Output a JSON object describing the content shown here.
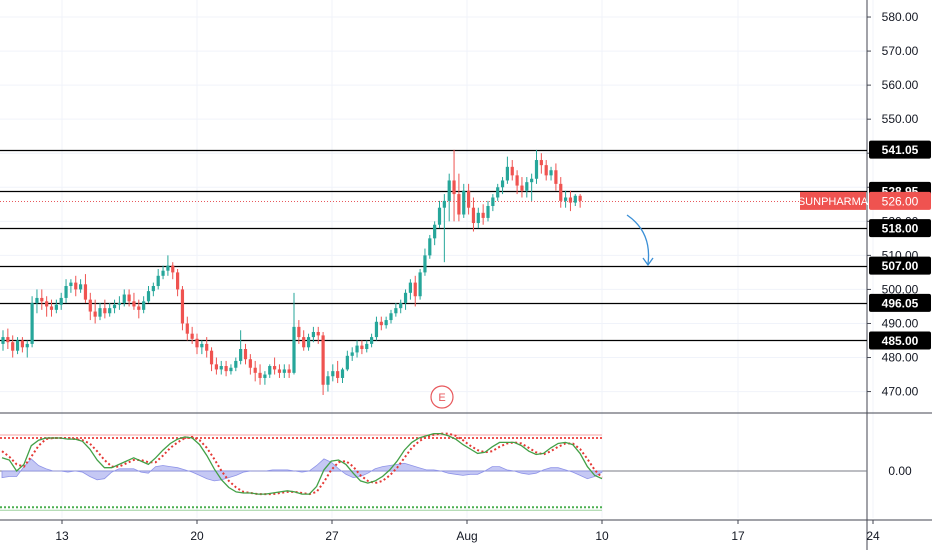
{
  "chart_data": {
    "type": "candlestick",
    "symbol": "SUNPHARMA",
    "last_price": "526.00",
    "y_ticks": [
      "580.00",
      "570.00",
      "560.00",
      "550.00",
      "540.00",
      "530.00",
      "520.00",
      "510.00",
      "500.00",
      "490.00",
      "480.00",
      "470.00"
    ],
    "ylim": [
      464,
      585
    ],
    "x_ticks": [
      "13",
      "20",
      "27",
      "Aug",
      "10",
      "17",
      "24"
    ],
    "levels": [
      {
        "label": "541.05",
        "value": 541.05,
        "style": "solid",
        "color": "#000000"
      },
      {
        "label": "528.95",
        "value": 528.95,
        "style": "solid",
        "color": "#000000"
      },
      {
        "label": "518.00",
        "value": 518.0,
        "style": "solid",
        "color": "#000000"
      },
      {
        "label": "507.00",
        "value": 507.0,
        "style": "solid",
        "color": "#000000"
      },
      {
        "label": "496.05",
        "value": 496.05,
        "style": "solid",
        "color": "#000000"
      },
      {
        "label": "485.00",
        "value": 485.0,
        "style": "solid",
        "color": "#000000"
      }
    ],
    "current_price_line": {
      "value": 526.0,
      "color": "#e8585c",
      "style": "dotted"
    },
    "earnings_marker": {
      "label": "E"
    },
    "candles": [
      {
        "o": 484.0,
        "h": 488.0,
        "c": 486.0,
        "l": 482.0
      },
      {
        "o": 486.0,
        "h": 488.5,
        "c": 484.5,
        "l": 482.5
      },
      {
        "o": 484.5,
        "h": 486.5,
        "c": 482.0,
        "l": 480.0
      },
      {
        "o": 482.0,
        "h": 486.0,
        "c": 485.0,
        "l": 481.0
      },
      {
        "o": 485.0,
        "h": 486.0,
        "c": 483.0,
        "l": 481.5
      },
      {
        "o": 483.0,
        "h": 485.0,
        "c": 484.0,
        "l": 480.0
      },
      {
        "o": 484.0,
        "h": 498.0,
        "c": 496.0,
        "l": 483.0
      },
      {
        "o": 496.0,
        "h": 500.0,
        "c": 497.5,
        "l": 493.0
      },
      {
        "o": 497.5,
        "h": 500.0,
        "c": 496.5,
        "l": 494.0
      },
      {
        "o": 496.5,
        "h": 498.0,
        "c": 495.0,
        "l": 492.0
      },
      {
        "o": 495.0,
        "h": 497.0,
        "c": 494.0,
        "l": 492.0
      },
      {
        "o": 494.0,
        "h": 497.0,
        "c": 495.5,
        "l": 493.0
      },
      {
        "o": 495.5,
        "h": 499.0,
        "c": 497.5,
        "l": 494.0
      },
      {
        "o": 497.5,
        "h": 503.0,
        "c": 501.0,
        "l": 496.0
      },
      {
        "o": 501.0,
        "h": 503.0,
        "c": 502.0,
        "l": 499.0
      },
      {
        "o": 502.0,
        "h": 504.0,
        "c": 500.0,
        "l": 498.0
      },
      {
        "o": 500.0,
        "h": 503.0,
        "c": 501.5,
        "l": 499.0
      },
      {
        "o": 501.5,
        "h": 504.5,
        "c": 497.0,
        "l": 496.0
      },
      {
        "o": 497.0,
        "h": 499.0,
        "c": 493.5,
        "l": 491.0
      },
      {
        "o": 493.5,
        "h": 497.0,
        "c": 492.0,
        "l": 490.0
      },
      {
        "o": 492.0,
        "h": 496.0,
        "c": 494.5,
        "l": 491.0
      },
      {
        "o": 494.5,
        "h": 497.0,
        "c": 493.0,
        "l": 491.5
      },
      {
        "o": 493.0,
        "h": 496.0,
        "c": 494.5,
        "l": 492.0
      },
      {
        "o": 494.5,
        "h": 497.0,
        "c": 495.5,
        "l": 493.0
      },
      {
        "o": 495.5,
        "h": 498.0,
        "c": 496.0,
        "l": 494.0
      },
      {
        "o": 496.0,
        "h": 500.0,
        "c": 498.5,
        "l": 495.0
      },
      {
        "o": 498.5,
        "h": 500.0,
        "c": 496.5,
        "l": 495.0
      },
      {
        "o": 496.5,
        "h": 499.0,
        "c": 495.0,
        "l": 494.0
      },
      {
        "o": 495.0,
        "h": 497.0,
        "c": 494.0,
        "l": 491.5
      },
      {
        "o": 494.0,
        "h": 498.0,
        "c": 496.5,
        "l": 493.0
      },
      {
        "o": 496.5,
        "h": 501.0,
        "c": 499.5,
        "l": 496.0
      },
      {
        "o": 499.5,
        "h": 502.0,
        "c": 501.0,
        "l": 498.0
      },
      {
        "o": 501.0,
        "h": 506.0,
        "c": 504.0,
        "l": 500.0
      },
      {
        "o": 504.0,
        "h": 507.0,
        "c": 505.5,
        "l": 503.0
      },
      {
        "o": 505.5,
        "h": 510.0,
        "c": 507.0,
        "l": 504.0
      },
      {
        "o": 507.0,
        "h": 508.0,
        "c": 505.0,
        "l": 503.0
      },
      {
        "o": 505.0,
        "h": 506.0,
        "c": 500.0,
        "l": 498.0
      },
      {
        "o": 500.0,
        "h": 501.0,
        "c": 490.0,
        "l": 488.0
      },
      {
        "o": 490.0,
        "h": 492.0,
        "c": 487.0,
        "l": 485.0
      },
      {
        "o": 487.0,
        "h": 489.0,
        "c": 485.5,
        "l": 484.0
      },
      {
        "o": 485.5,
        "h": 487.0,
        "c": 483.0,
        "l": 481.0
      },
      {
        "o": 483.0,
        "h": 485.0,
        "c": 484.0,
        "l": 481.0
      },
      {
        "o": 484.0,
        "h": 486.0,
        "c": 482.0,
        "l": 480.0
      },
      {
        "o": 482.0,
        "h": 483.0,
        "c": 478.0,
        "l": 476.0
      },
      {
        "o": 478.0,
        "h": 480.0,
        "c": 476.5,
        "l": 475.0
      },
      {
        "o": 476.5,
        "h": 479.0,
        "c": 477.5,
        "l": 475.0
      },
      {
        "o": 477.5,
        "h": 479.0,
        "c": 476.0,
        "l": 474.5
      },
      {
        "o": 476.0,
        "h": 478.0,
        "c": 477.0,
        "l": 475.0
      },
      {
        "o": 477.0,
        "h": 480.0,
        "c": 479.0,
        "l": 476.0
      },
      {
        "o": 479.0,
        "h": 488.0,
        "c": 482.5,
        "l": 478.0
      },
      {
        "o": 482.5,
        "h": 484.0,
        "c": 479.5,
        "l": 478.0
      },
      {
        "o": 479.5,
        "h": 481.0,
        "c": 477.0,
        "l": 475.0
      },
      {
        "o": 477.0,
        "h": 479.0,
        "c": 475.5,
        "l": 473.0
      },
      {
        "o": 475.5,
        "h": 478.0,
        "c": 474.0,
        "l": 472.0
      },
      {
        "o": 474.0,
        "h": 476.0,
        "c": 475.0,
        "l": 472.0
      },
      {
        "o": 475.0,
        "h": 478.0,
        "c": 477.5,
        "l": 474.0
      },
      {
        "o": 477.5,
        "h": 480.0,
        "c": 476.5,
        "l": 475.0
      },
      {
        "o": 476.5,
        "h": 478.0,
        "c": 475.5,
        "l": 474.0
      },
      {
        "o": 475.5,
        "h": 478.0,
        "c": 476.5,
        "l": 474.0
      },
      {
        "o": 476.5,
        "h": 478.0,
        "c": 475.5,
        "l": 474.0
      },
      {
        "o": 475.5,
        "h": 499.0,
        "c": 489.0,
        "l": 475.0
      },
      {
        "o": 489.0,
        "h": 491.0,
        "c": 486.0,
        "l": 484.0
      },
      {
        "o": 486.0,
        "h": 488.0,
        "c": 483.0,
        "l": 482.0
      },
      {
        "o": 483.0,
        "h": 487.0,
        "c": 486.0,
        "l": 482.0
      },
      {
        "o": 486.0,
        "h": 489.0,
        "c": 487.5,
        "l": 484.5
      },
      {
        "o": 487.5,
        "h": 489.0,
        "c": 486.5,
        "l": 484.0
      },
      {
        "o": 486.5,
        "h": 487.5,
        "c": 472.0,
        "l": 469.0
      },
      {
        "o": 472.0,
        "h": 476.0,
        "c": 474.5,
        "l": 470.0
      },
      {
        "o": 474.5,
        "h": 478.0,
        "c": 476.0,
        "l": 473.0
      },
      {
        "o": 476.0,
        "h": 479.0,
        "c": 474.0,
        "l": 472.5
      },
      {
        "o": 474.0,
        "h": 477.0,
        "c": 476.5,
        "l": 472.5
      },
      {
        "o": 476.5,
        "h": 482.0,
        "c": 480.5,
        "l": 476.0
      },
      {
        "o": 480.5,
        "h": 483.0,
        "c": 481.5,
        "l": 479.0
      },
      {
        "o": 481.5,
        "h": 485.0,
        "c": 483.5,
        "l": 480.0
      },
      {
        "o": 483.5,
        "h": 485.0,
        "c": 482.5,
        "l": 481.0
      },
      {
        "o": 482.5,
        "h": 485.0,
        "c": 484.0,
        "l": 481.5
      },
      {
        "o": 484.0,
        "h": 487.0,
        "c": 486.0,
        "l": 483.0
      },
      {
        "o": 486.0,
        "h": 492.0,
        "c": 490.5,
        "l": 485.0
      },
      {
        "o": 490.5,
        "h": 492.0,
        "c": 489.5,
        "l": 488.0
      },
      {
        "o": 489.5,
        "h": 492.0,
        "c": 491.0,
        "l": 488.5
      },
      {
        "o": 491.0,
        "h": 494.0,
        "c": 493.0,
        "l": 490.0
      },
      {
        "o": 493.0,
        "h": 496.0,
        "c": 494.5,
        "l": 492.0
      },
      {
        "o": 494.5,
        "h": 497.0,
        "c": 496.0,
        "l": 493.0
      },
      {
        "o": 496.0,
        "h": 500.0,
        "c": 499.0,
        "l": 494.0
      },
      {
        "o": 499.0,
        "h": 503.0,
        "c": 502.0,
        "l": 497.0
      },
      {
        "o": 502.0,
        "h": 504.0,
        "c": 498.0,
        "l": 495.0
      },
      {
        "o": 498.0,
        "h": 506.0,
        "c": 505.0,
        "l": 497.0
      },
      {
        "o": 505.0,
        "h": 512.0,
        "c": 510.0,
        "l": 504.0
      },
      {
        "o": 510.0,
        "h": 516.0,
        "c": 515.0,
        "l": 509.0
      },
      {
        "o": 515.0,
        "h": 520.0,
        "c": 519.0,
        "l": 513.0
      },
      {
        "o": 519.0,
        "h": 526.0,
        "c": 524.0,
        "l": 518.0
      },
      {
        "o": 524.0,
        "h": 528.0,
        "c": 526.0,
        "l": 508.0
      },
      {
        "o": 526.0,
        "h": 534.0,
        "c": 532.0,
        "l": 520.0
      },
      {
        "o": 532.0,
        "h": 541.0,
        "c": 528.0,
        "l": 520.0
      },
      {
        "o": 528.0,
        "h": 534.0,
        "c": 522.0,
        "l": 520.0
      },
      {
        "o": 522.0,
        "h": 531.0,
        "c": 529.0,
        "l": 521.0
      },
      {
        "o": 529.0,
        "h": 531.0,
        "c": 524.0,
        "l": 522.0
      },
      {
        "o": 524.0,
        "h": 527.0,
        "c": 519.5,
        "l": 517.0
      },
      {
        "o": 519.5,
        "h": 524.0,
        "c": 522.5,
        "l": 518.0
      },
      {
        "o": 522.5,
        "h": 525.0,
        "c": 521.0,
        "l": 519.0
      },
      {
        "o": 521.0,
        "h": 526.0,
        "c": 524.5,
        "l": 520.0
      },
      {
        "o": 524.5,
        "h": 528.0,
        "c": 527.0,
        "l": 523.0
      },
      {
        "o": 527.0,
        "h": 531.0,
        "c": 530.0,
        "l": 526.0
      },
      {
        "o": 530.0,
        "h": 533.0,
        "c": 532.0,
        "l": 528.0
      },
      {
        "o": 532.0,
        "h": 539.0,
        "c": 536.0,
        "l": 531.0
      },
      {
        "o": 536.0,
        "h": 538.0,
        "c": 533.5,
        "l": 532.0
      },
      {
        "o": 533.5,
        "h": 535.0,
        "c": 530.5,
        "l": 528.0
      },
      {
        "o": 530.5,
        "h": 533.0,
        "c": 529.0,
        "l": 527.0
      },
      {
        "o": 529.0,
        "h": 533.0,
        "c": 531.5,
        "l": 527.0
      },
      {
        "o": 531.5,
        "h": 534.0,
        "c": 532.5,
        "l": 526.0
      },
      {
        "o": 532.5,
        "h": 541.0,
        "c": 538.0,
        "l": 531.0
      },
      {
        "o": 538.0,
        "h": 540.0,
        "c": 536.5,
        "l": 534.0
      },
      {
        "o": 536.5,
        "h": 538.0,
        "c": 533.5,
        "l": 532.0
      },
      {
        "o": 533.5,
        "h": 536.0,
        "c": 535.0,
        "l": 532.0
      },
      {
        "o": 535.0,
        "h": 537.0,
        "c": 531.0,
        "l": 529.0
      },
      {
        "o": 531.0,
        "h": 533.0,
        "c": 526.0,
        "l": 524.0
      },
      {
        "o": 526.0,
        "h": 529.0,
        "c": 527.0,
        "l": 524.0
      },
      {
        "o": 527.0,
        "h": 529.0,
        "c": 525.5,
        "l": 523.0
      },
      {
        "o": 525.5,
        "h": 528.0,
        "c": 527.5,
        "l": 524.5
      },
      {
        "o": 527.5,
        "h": 528.0,
        "c": 526.0,
        "l": 524.0
      }
    ],
    "oscillator": {
      "zero_label": "0.00",
      "osc_ylim": [
        -4,
        4
      ],
      "upper_band": 3.0,
      "lower_band": -3.3,
      "fast": [
        1.2,
        1.0,
        0.0,
        0.6,
        2.3,
        2.8,
        3.0,
        3.0,
        3.0,
        2.9,
        2.9,
        2.7,
        2.0,
        1.0,
        0.3,
        0.3,
        0.6,
        0.9,
        1.2,
        0.9,
        0.6,
        1.2,
        1.9,
        2.5,
        2.9,
        3.1,
        3.0,
        2.4,
        1.4,
        0.2,
        -0.8,
        -1.5,
        -1.9,
        -2.0,
        -2.0,
        -2.1,
        -2.1,
        -2.0,
        -1.9,
        -1.8,
        -1.9,
        -2.1,
        -2.1,
        -1.4,
        0.1,
        0.9,
        1.0,
        0.6,
        -0.2,
        -0.9,
        -1.1,
        -0.9,
        -0.5,
        0.1,
        0.9,
        1.9,
        2.6,
        3.0,
        3.2,
        3.4,
        3.4,
        3.2,
        2.9,
        2.4,
        2.0,
        1.6,
        1.7,
        2.2,
        2.6,
        2.6,
        2.6,
        2.3,
        1.8,
        1.5,
        1.6,
        2.1,
        2.5,
        2.6,
        2.4,
        1.6,
        0.4,
        -0.4,
        -0.7
      ],
      "slow": [
        1.8,
        1.3,
        0.6,
        0.4,
        1.3,
        2.3,
        2.9,
        3.0,
        3.0,
        3.0,
        2.9,
        2.8,
        2.5,
        1.8,
        1.0,
        0.4,
        0.4,
        0.7,
        1.0,
        1.0,
        0.8,
        0.8,
        1.4,
        2.1,
        2.6,
        3.0,
        3.1,
        2.8,
        2.1,
        1.1,
        0.0,
        -0.9,
        -1.5,
        -1.9,
        -2.0,
        -2.1,
        -2.1,
        -2.1,
        -2.0,
        -1.9,
        -1.9,
        -2.0,
        -2.1,
        -1.9,
        -1.0,
        0.1,
        0.8,
        0.9,
        0.4,
        -0.4,
        -0.9,
        -1.1,
        -0.9,
        -0.4,
        0.3,
        1.2,
        2.1,
        2.7,
        3.1,
        3.3,
        3.4,
        3.4,
        3.2,
        2.8,
        2.3,
        1.9,
        1.7,
        1.8,
        2.2,
        2.5,
        2.6,
        2.5,
        2.1,
        1.7,
        1.5,
        1.8,
        2.2,
        2.5,
        2.5,
        2.0,
        1.1,
        0.1,
        -0.6
      ],
      "histogram": [
        -0.6,
        -0.5,
        -0.5,
        0.4,
        1.1,
        0.5,
        0.2,
        0.0,
        0.0,
        -0.1,
        0.0,
        -0.1,
        -0.5,
        -0.8,
        -0.7,
        -0.1,
        0.2,
        0.2,
        0.2,
        -0.1,
        -0.2,
        0.4,
        0.5,
        0.4,
        0.3,
        0.1,
        -0.1,
        -0.4,
        -0.7,
        -0.9,
        -0.8,
        -0.6,
        -0.4,
        -0.1,
        0.0,
        0.0,
        0.0,
        0.1,
        0.1,
        0.1,
        0.0,
        -0.1,
        0.0,
        0.5,
        1.1,
        0.8,
        0.2,
        -0.3,
        -0.6,
        -0.5,
        -0.2,
        0.2,
        0.4,
        0.5,
        0.6,
        0.7,
        0.5,
        0.3,
        0.1,
        0.1,
        0.0,
        -0.2,
        -0.3,
        -0.4,
        -0.3,
        -0.3,
        0.0,
        0.4,
        0.4,
        0.1,
        0.0,
        -0.2,
        -0.3,
        -0.2,
        0.1,
        0.3,
        0.3,
        0.1,
        -0.1,
        -0.4,
        -0.7,
        -0.5,
        -0.1
      ]
    }
  }
}
